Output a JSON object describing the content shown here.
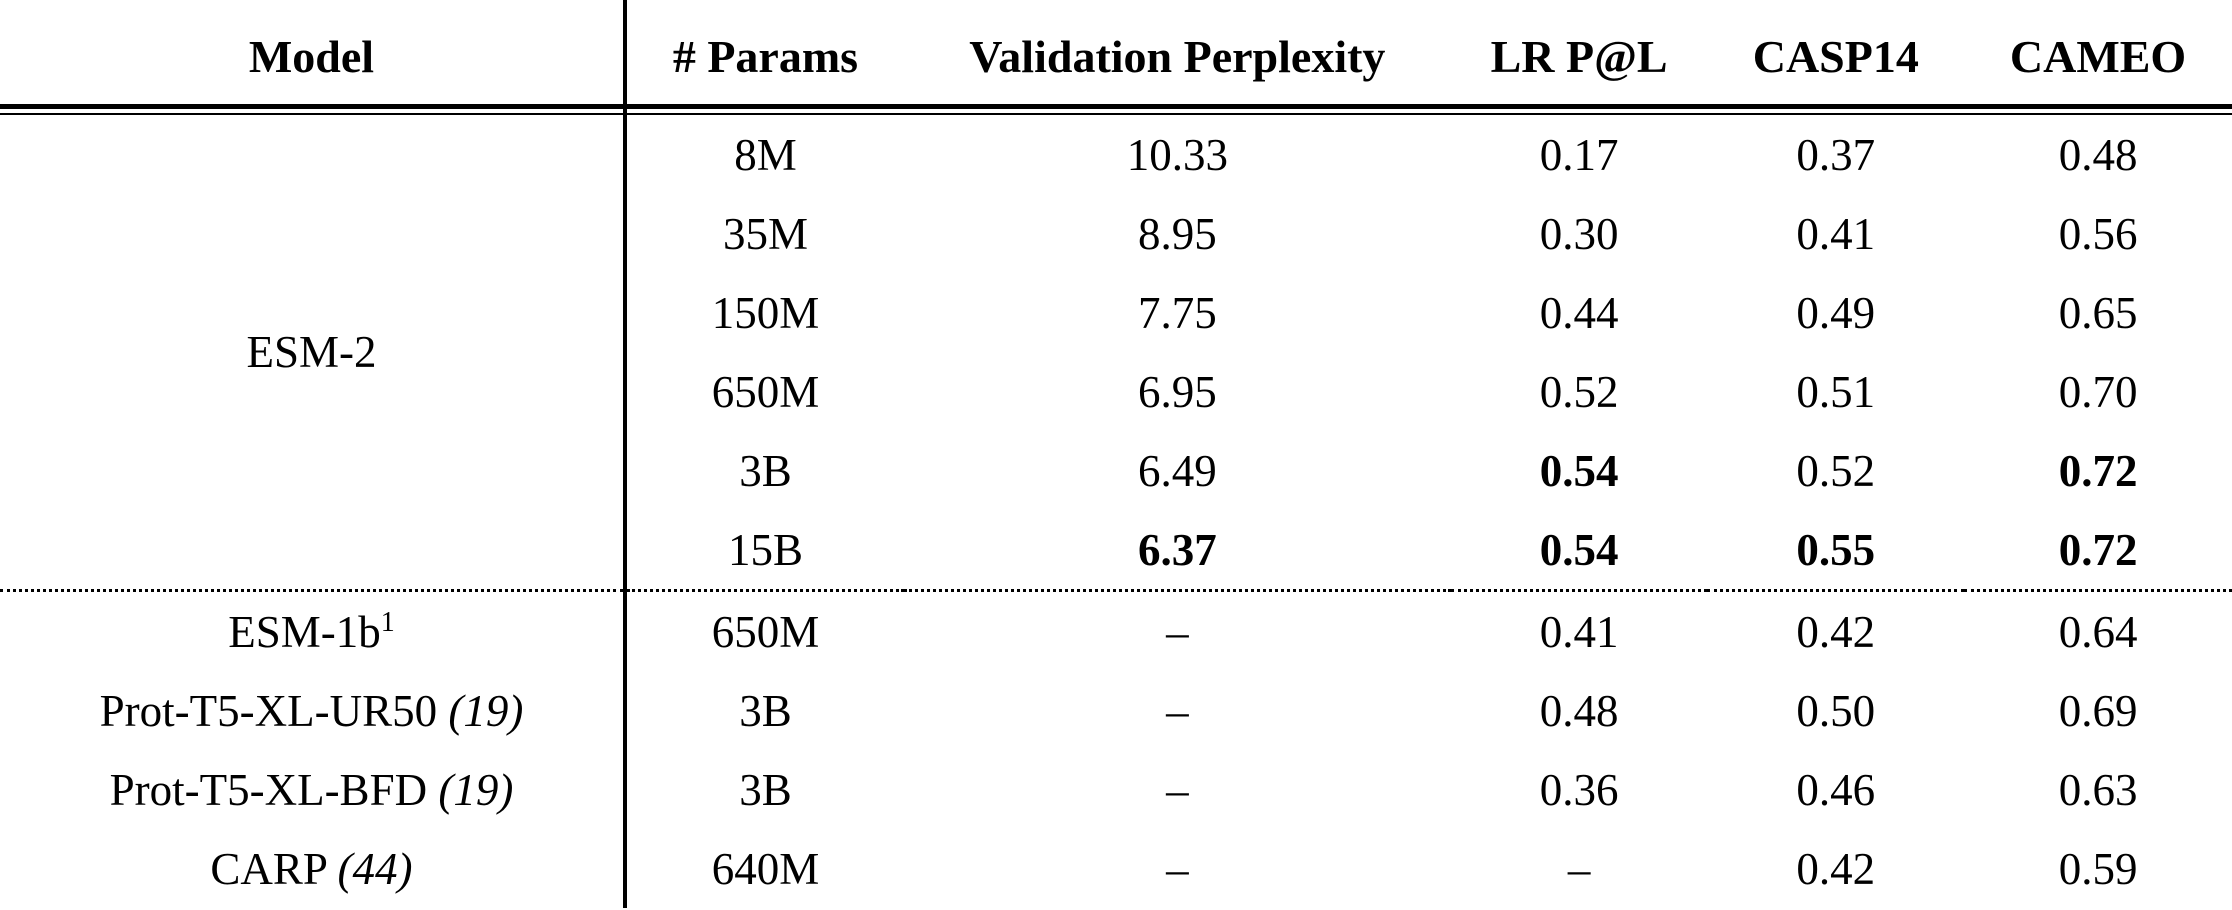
{
  "colors": {
    "text": "#000000",
    "background": "#ffffff",
    "rules": "#000000"
  },
  "table": {
    "headers": [
      "Model",
      "# Params",
      "Validation Perplexity",
      "LR P@L",
      "CASP14",
      "CAMEO"
    ],
    "groups": [
      {
        "model": "ESM-2",
        "rows": [
          {
            "values": [
              {
                "text": "8M"
              },
              {
                "text": "10.33"
              },
              {
                "text": "0.17"
              },
              {
                "text": "0.37"
              },
              {
                "text": "0.48"
              }
            ]
          },
          {
            "values": [
              {
                "text": "35M"
              },
              {
                "text": "8.95"
              },
              {
                "text": "0.30"
              },
              {
                "text": "0.41"
              },
              {
                "text": "0.56"
              }
            ]
          },
          {
            "values": [
              {
                "text": "150M"
              },
              {
                "text": "7.75"
              },
              {
                "text": "0.44"
              },
              {
                "text": "0.49"
              },
              {
                "text": "0.65"
              }
            ]
          },
          {
            "values": [
              {
                "text": "650M"
              },
              {
                "text": "6.95"
              },
              {
                "text": "0.52"
              },
              {
                "text": "0.51"
              },
              {
                "text": "0.70"
              }
            ]
          },
          {
            "values": [
              {
                "text": "3B"
              },
              {
                "text": "6.49"
              },
              {
                "text": "0.54",
                "bold": true
              },
              {
                "text": "0.52"
              },
              {
                "text": "0.72",
                "bold": true
              }
            ]
          },
          {
            "values": [
              {
                "text": "15B"
              },
              {
                "text": "6.37",
                "bold": true
              },
              {
                "text": "0.54",
                "bold": true
              },
              {
                "text": "0.55",
                "bold": true
              },
              {
                "text": "0.72",
                "bold": true
              }
            ]
          }
        ]
      }
    ],
    "baseline_rows": [
      {
        "model": {
          "text": "ESM-1b",
          "sup": "1"
        },
        "values": [
          {
            "text": "650M"
          },
          {
            "text": "–"
          },
          {
            "text": "0.41"
          },
          {
            "text": "0.42"
          },
          {
            "text": "0.64"
          }
        ]
      },
      {
        "model": {
          "text": "Prot-T5-XL-UR50 ",
          "cite": "(19)"
        },
        "values": [
          {
            "text": "3B"
          },
          {
            "text": "–"
          },
          {
            "text": "0.48"
          },
          {
            "text": "0.50"
          },
          {
            "text": "0.69"
          }
        ]
      },
      {
        "model": {
          "text": "Prot-T5-XL-BFD ",
          "cite": "(19)"
        },
        "values": [
          {
            "text": "3B"
          },
          {
            "text": "–"
          },
          {
            "text": "0.36"
          },
          {
            "text": "0.46"
          },
          {
            "text": "0.63"
          }
        ]
      },
      {
        "model": {
          "text": "CARP ",
          "cite": "(44)"
        },
        "values": [
          {
            "text": "640M"
          },
          {
            "text": "–"
          },
          {
            "text": "–"
          },
          {
            "text": "0.42"
          },
          {
            "text": "0.59"
          }
        ]
      }
    ]
  }
}
